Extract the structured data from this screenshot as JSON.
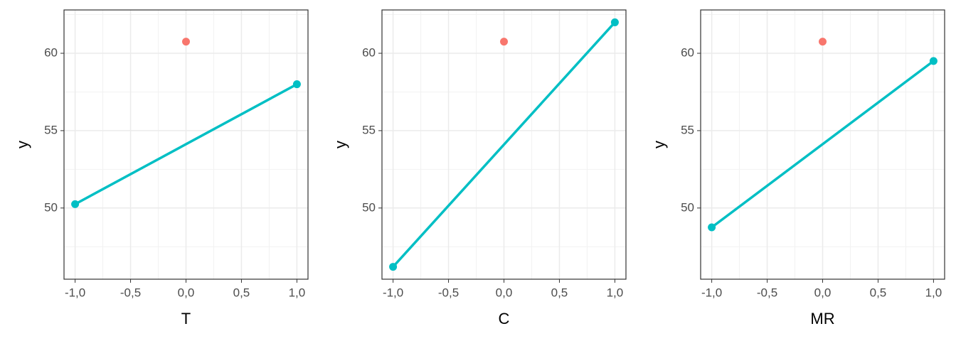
{
  "chart_data": [
    {
      "type": "line",
      "xlabel": "T",
      "ylabel": "y",
      "series": [
        {
          "color": "#00bfc4",
          "x": [
            -1,
            1
          ],
          "values": [
            50.25,
            58.0
          ],
          "lines": true
        },
        {
          "color": "#f8766d",
          "x": [
            0
          ],
          "values": [
            60.75
          ],
          "lines": false
        }
      ],
      "xlim": [
        -1.1,
        1.1
      ],
      "ylim": [
        45.4,
        62.8
      ],
      "xticks": [
        {
          "value": -1,
          "label": "-1,0"
        },
        {
          "value": -0.5,
          "label": "-0,5"
        },
        {
          "value": 0,
          "label": "0,0"
        },
        {
          "value": 0.5,
          "label": "0,5"
        },
        {
          "value": 1,
          "label": "1,0"
        }
      ],
      "yticks": [
        50,
        55,
        60
      ],
      "grid": true
    },
    {
      "type": "line",
      "xlabel": "C",
      "ylabel": "y",
      "series": [
        {
          "color": "#00bfc4",
          "x": [
            -1,
            1
          ],
          "values": [
            46.2,
            62.0
          ],
          "lines": true
        },
        {
          "color": "#f8766d",
          "x": [
            0
          ],
          "values": [
            60.75
          ],
          "lines": false
        }
      ],
      "xlim": [
        -1.1,
        1.1
      ],
      "ylim": [
        45.4,
        62.8
      ],
      "xticks": [
        {
          "value": -1,
          "label": "-1,0"
        },
        {
          "value": -0.5,
          "label": "-0,5"
        },
        {
          "value": 0,
          "label": "0,0"
        },
        {
          "value": 0.5,
          "label": "0,5"
        },
        {
          "value": 1,
          "label": "1,0"
        }
      ],
      "yticks": [
        50,
        55,
        60
      ],
      "grid": true
    },
    {
      "type": "line",
      "xlabel": "MR",
      "ylabel": "y",
      "series": [
        {
          "color": "#00bfc4",
          "x": [
            -1,
            1
          ],
          "values": [
            48.75,
            59.5
          ],
          "lines": true
        },
        {
          "color": "#f8766d",
          "x": [
            0
          ],
          "values": [
            60.75
          ],
          "lines": false
        }
      ],
      "xlim": [
        -1.1,
        1.1
      ],
      "ylim": [
        45.4,
        62.8
      ],
      "xticks": [
        {
          "value": -1,
          "label": "-1,0"
        },
        {
          "value": -0.5,
          "label": "-0,5"
        },
        {
          "value": 0,
          "label": "0,0"
        },
        {
          "value": 0.5,
          "label": "0,5"
        },
        {
          "value": 1,
          "label": "1,0"
        }
      ],
      "yticks": [
        50,
        55,
        60
      ],
      "grid": true
    }
  ]
}
